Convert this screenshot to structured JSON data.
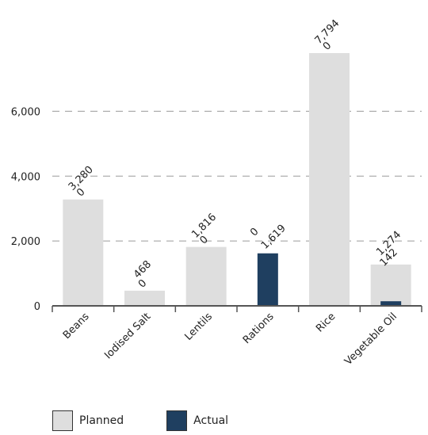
{
  "chart_data": {
    "type": "bar",
    "categories": [
      "Beans",
      "Iodised Salt",
      "Lentils",
      "Rations",
      "Rice",
      "Vegetable Oil"
    ],
    "series": [
      {
        "name": "Planned",
        "color": "#dedede",
        "values": [
          3280,
          468,
          1816,
          0,
          7794,
          1274
        ]
      },
      {
        "name": "Actual",
        "color": "#1f3f60",
        "values": [
          0,
          0,
          0,
          1619,
          0,
          142
        ]
      }
    ],
    "value_labels": {
      "Planned": [
        "3,280",
        "468",
        "1,816",
        "0",
        "7,794",
        "1,274"
      ],
      "Actual": [
        "0",
        "0",
        "0",
        "1,619",
        "0",
        "142"
      ]
    },
    "y_ticks": [
      0,
      2000,
      4000,
      6000
    ],
    "y_tick_labels": [
      "0",
      "2,000",
      "4,000",
      "6,000"
    ],
    "ylim": [
      0,
      7794
    ],
    "grid": true,
    "legend_position": "bottom-left"
  }
}
